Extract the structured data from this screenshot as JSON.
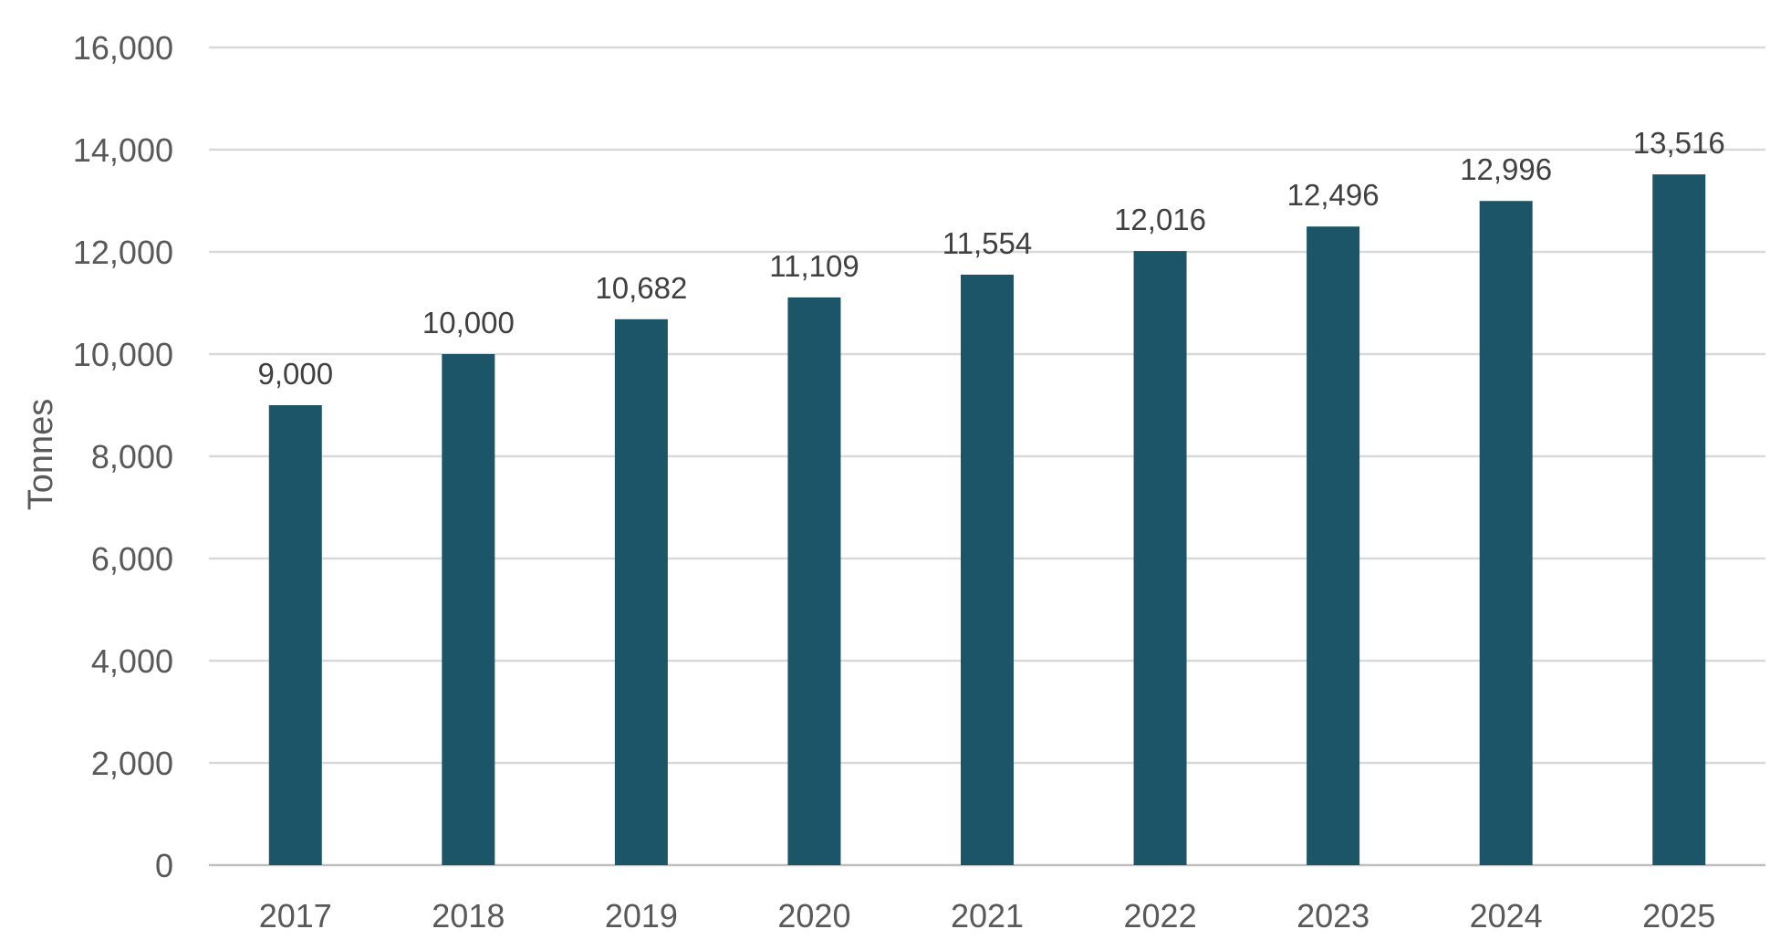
{
  "chart_data": {
    "type": "bar",
    "title": "",
    "xlabel": "",
    "ylabel": "Tonnes",
    "categories": [
      "2017",
      "2018",
      "2019",
      "2020",
      "2021",
      "2022",
      "2023",
      "2024",
      "2025"
    ],
    "values": [
      9000,
      10000,
      10682,
      11109,
      11554,
      12016,
      12496,
      12996,
      13516
    ],
    "data_labels": [
      "9,000",
      "10,000",
      "10,682",
      "11,109",
      "11,554",
      "12,016",
      "12,496",
      "12,996",
      "13,516"
    ],
    "y_ticks": [
      0,
      2000,
      4000,
      6000,
      8000,
      10000,
      12000,
      14000,
      16000
    ],
    "y_tick_labels": [
      "0",
      "2,000",
      "4,000",
      "6,000",
      "8,000",
      "10,000",
      "12,000",
      "14,000",
      "16,000"
    ],
    "ylim": [
      0,
      16000
    ],
    "grid": true,
    "legend": "none",
    "bar_color": "#1c5468"
  }
}
